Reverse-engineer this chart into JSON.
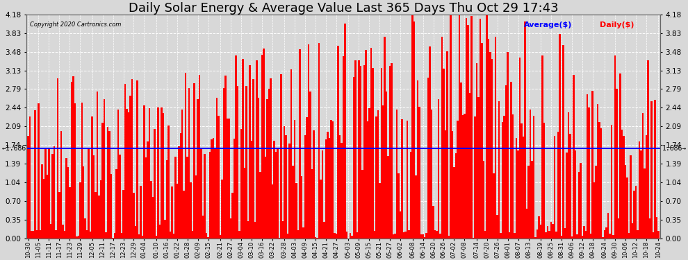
{
  "title": "Daily Solar Energy & Average Value Last 365 Days Thu Oct 29 17:43",
  "copyright": "Copyright 2020 Cartronics.com",
  "legend_average": "Average($)",
  "legend_daily": "Daily($)",
  "average_value": 1.686,
  "average_label_left": "←1.686",
  "average_label_right": "1.686→",
  "ylim": [
    0.0,
    4.18
  ],
  "yticks": [
    0.0,
    0.35,
    0.7,
    1.04,
    1.39,
    1.74,
    2.09,
    2.44,
    2.79,
    3.13,
    3.48,
    3.83,
    4.18
  ],
  "bar_color": "#ff0000",
  "avg_line_color": "#0000ff",
  "background_color": "#d8d8d8",
  "plot_bg_color": "#d8d8d8",
  "grid_color": "#ffffff",
  "title_fontsize": 13,
  "xlabel_fontsize": 6.0,
  "ylabel_fontsize": 7.5,
  "x_labels": [
    "10-30",
    "11-05",
    "11-11",
    "11-17",
    "11-23",
    "11-29",
    "12-05",
    "12-11",
    "12-17",
    "12-23",
    "12-29",
    "01-04",
    "01-10",
    "01-16",
    "01-22",
    "01-28",
    "02-09",
    "02-15",
    "02-21",
    "02-27",
    "03-04",
    "03-10",
    "03-16",
    "03-22",
    "03-28",
    "04-03",
    "04-09",
    "04-15",
    "04-21",
    "04-27",
    "05-03",
    "05-09",
    "05-15",
    "05-21",
    "05-27",
    "06-02",
    "06-08",
    "06-14",
    "06-20",
    "06-26",
    "07-02",
    "07-08",
    "07-14",
    "07-20",
    "07-26",
    "08-01",
    "08-07",
    "08-13",
    "08-19",
    "08-25",
    "08-31",
    "09-06",
    "09-12",
    "09-18",
    "09-24",
    "09-30",
    "10-06",
    "10-12",
    "10-18",
    "10-24"
  ],
  "n_bars": 365,
  "seed": 42
}
